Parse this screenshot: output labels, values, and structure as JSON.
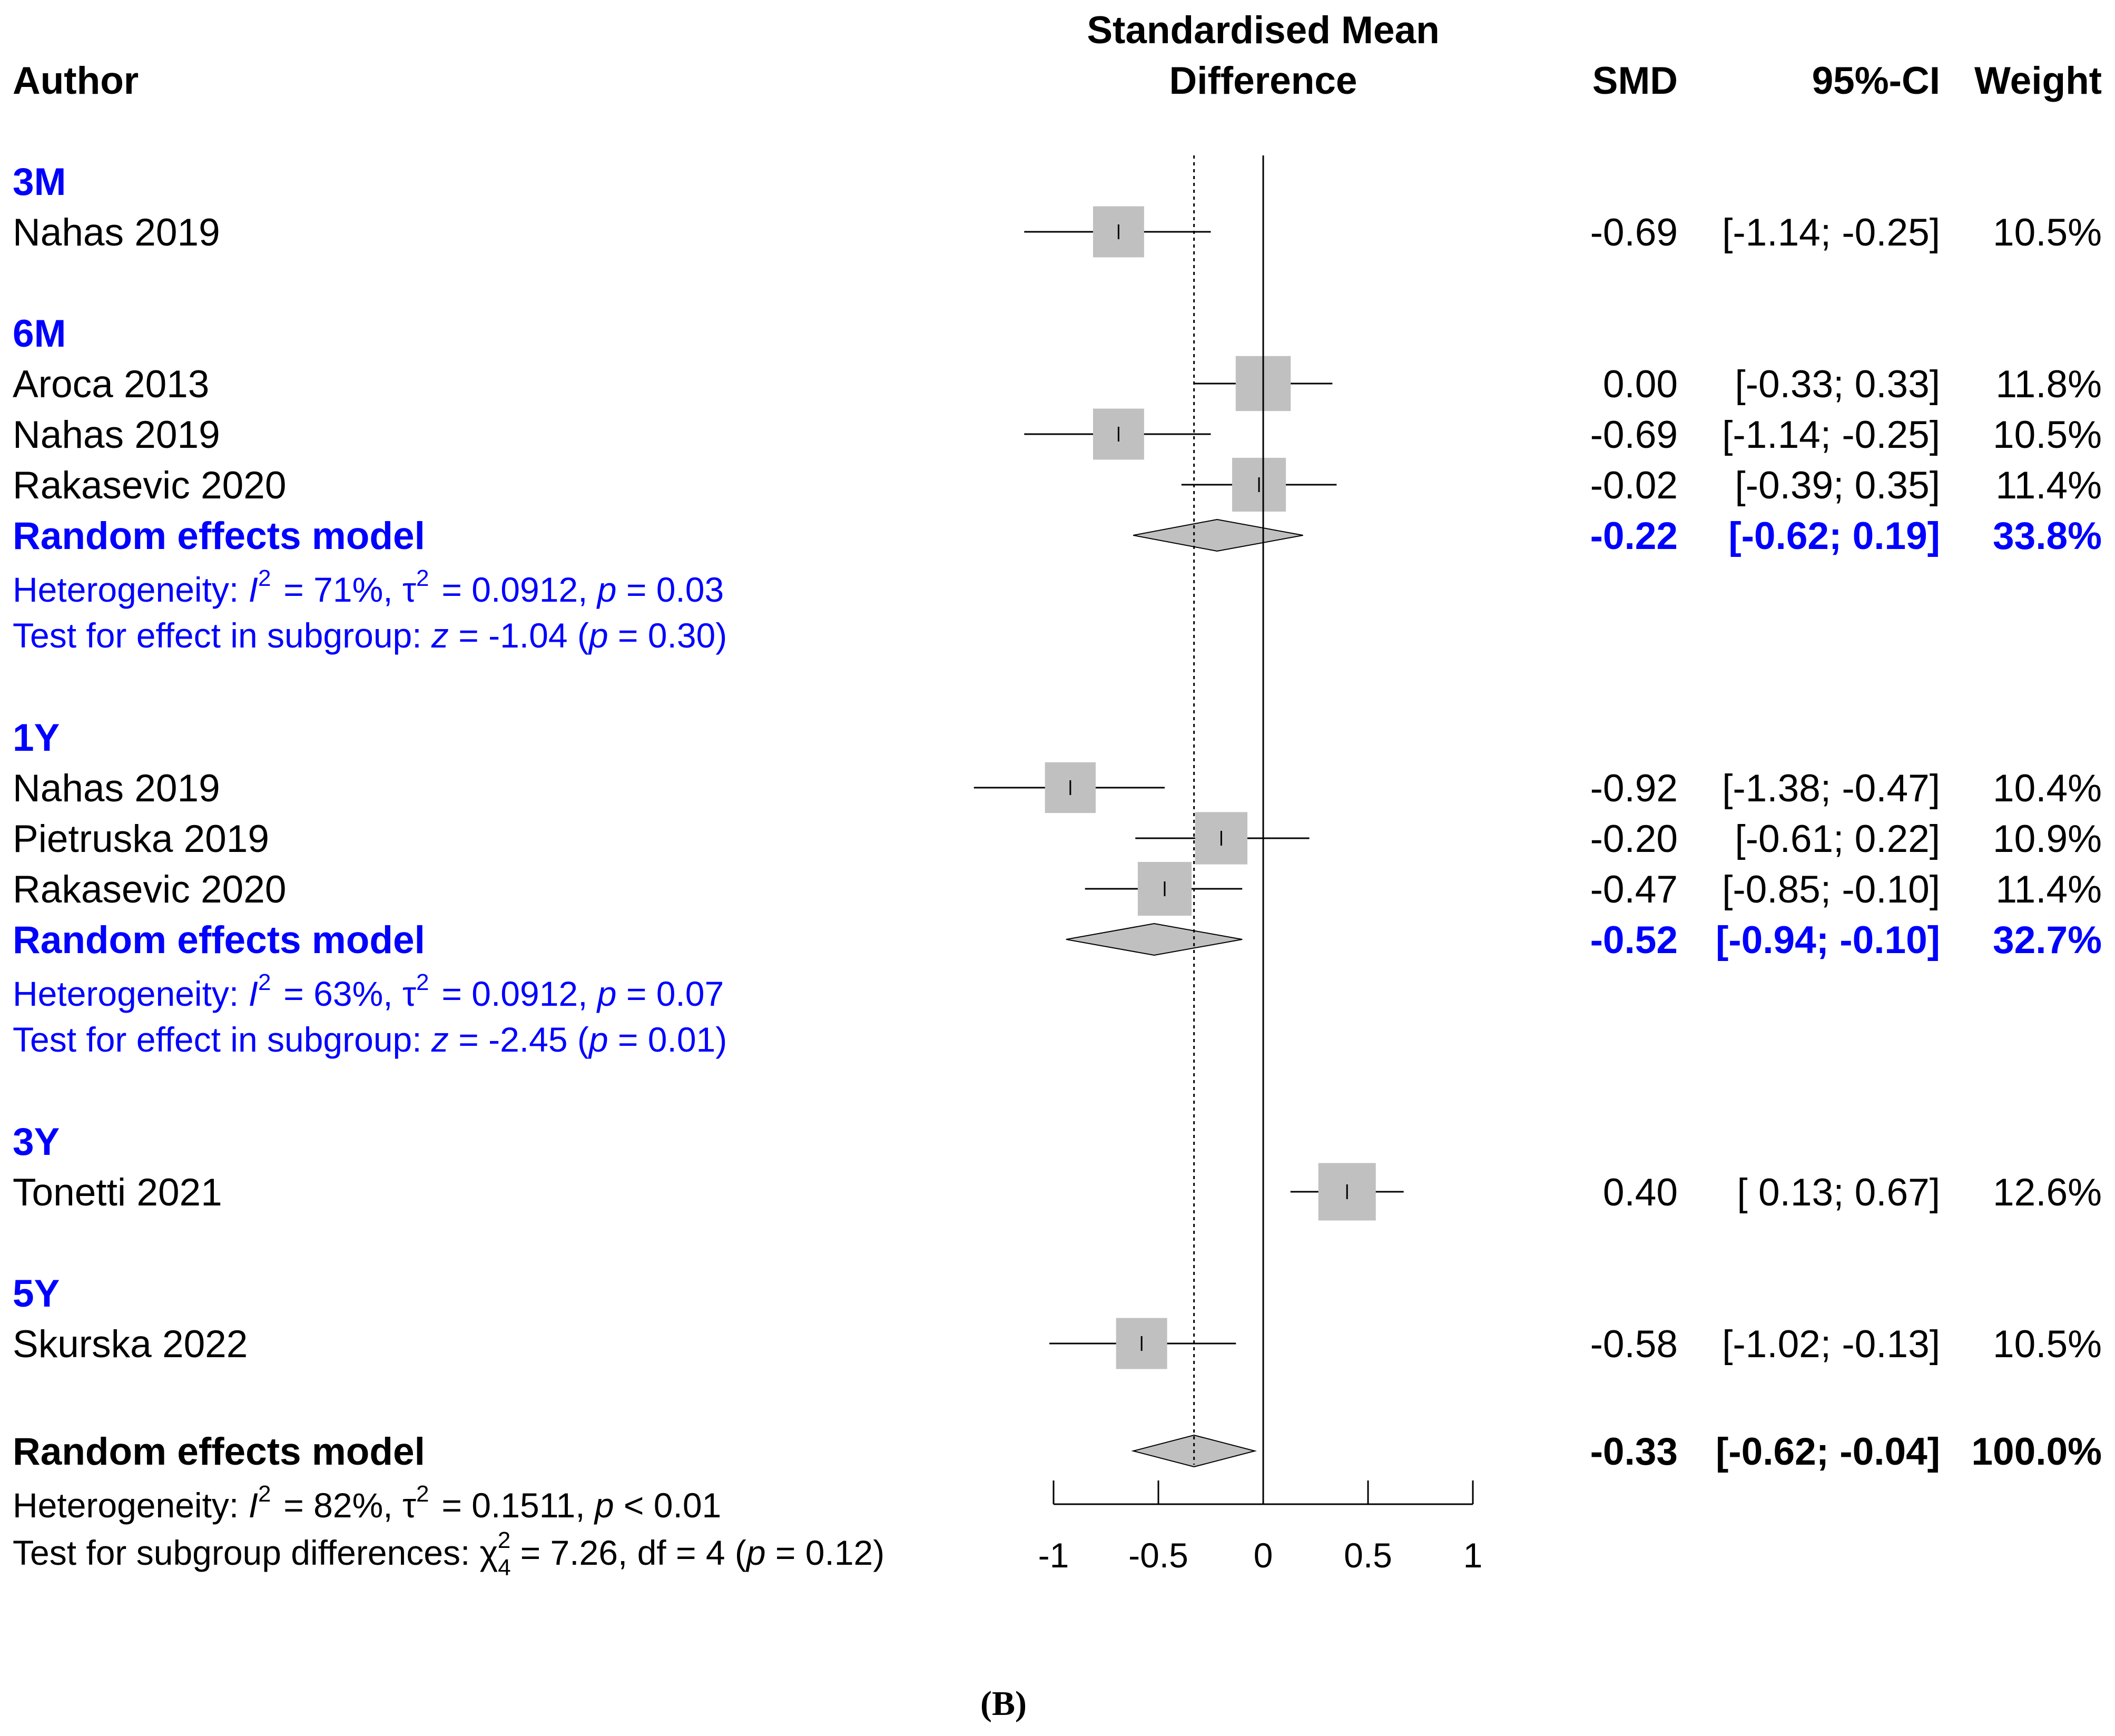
{
  "chart_data": {
    "type": "forest",
    "title": "Standardised Mean Difference",
    "headers": {
      "author": "Author",
      "effect_line1": "Standardised Mean",
      "effect_line2": "Difference",
      "smd": "SMD",
      "ci": "95%-CI",
      "weight": "Weight"
    },
    "xlim": [
      -1,
      1
    ],
    "ticks": [
      -1,
      -0.5,
      0,
      0.5,
      1
    ],
    "tick_labels": [
      "-1",
      "-0.5",
      "0",
      "0.5",
      "1"
    ],
    "overall_estimate": -0.33,
    "groups": [
      {
        "label": "3M",
        "studies": [
          {
            "author": "Nahas 2019",
            "smd": -0.69,
            "lo": -1.14,
            "hi": -0.25,
            "weight": 10.5,
            "smd_text": "-0.69",
            "ci_text": "[-1.14; -0.25]",
            "weight_text": "10.5%"
          }
        ]
      },
      {
        "label": "6M",
        "studies": [
          {
            "author": "Aroca 2013",
            "smd": 0.0,
            "lo": -0.33,
            "hi": 0.33,
            "weight": 11.8,
            "smd_text": "0.00",
            "ci_text": "[-0.33;  0.33]",
            "weight_text": "11.8%"
          },
          {
            "author": "Nahas 2019",
            "smd": -0.69,
            "lo": -1.14,
            "hi": -0.25,
            "weight": 10.5,
            "smd_text": "-0.69",
            "ci_text": "[-1.14; -0.25]",
            "weight_text": "10.5%"
          },
          {
            "author": "Rakasevic 2020",
            "smd": -0.02,
            "lo": -0.39,
            "hi": 0.35,
            "weight": 11.4,
            "smd_text": "-0.02",
            "ci_text": "[-0.39;  0.35]",
            "weight_text": "11.4%"
          }
        ],
        "summary": {
          "label": "Random effects model",
          "smd": -0.22,
          "lo": -0.62,
          "hi": 0.19,
          "smd_text": "-0.22",
          "ci_text": "[-0.62;  0.19]",
          "weight_text": "33.8%",
          "het_i2": "71%",
          "het_tau2": "0.0912",
          "het_p": "0.03",
          "test_z": "-1.04",
          "test_p": "0.30"
        }
      },
      {
        "label": "1Y",
        "studies": [
          {
            "author": "Nahas 2019",
            "smd": -0.92,
            "lo": -1.38,
            "hi": -0.47,
            "weight": 10.4,
            "smd_text": "-0.92",
            "ci_text": "[-1.38; -0.47]",
            "weight_text": "10.4%"
          },
          {
            "author": "Pietruska 2019",
            "smd": -0.2,
            "lo": -0.61,
            "hi": 0.22,
            "weight": 10.9,
            "smd_text": "-0.20",
            "ci_text": "[-0.61;  0.22]",
            "weight_text": "10.9%"
          },
          {
            "author": "Rakasevic 2020",
            "smd": -0.47,
            "lo": -0.85,
            "hi": -0.1,
            "weight": 11.4,
            "smd_text": "-0.47",
            "ci_text": "[-0.85; -0.10]",
            "weight_text": "11.4%"
          }
        ],
        "summary": {
          "label": "Random effects model",
          "smd": -0.52,
          "lo": -0.94,
          "hi": -0.1,
          "smd_text": "-0.52",
          "ci_text": "[-0.94; -0.10]",
          "weight_text": "32.7%",
          "het_i2": "63%",
          "het_tau2": "0.0912",
          "het_p": "0.07",
          "test_z": "-2.45",
          "test_p": "0.01"
        }
      },
      {
        "label": "3Y",
        "studies": [
          {
            "author": "Tonetti 2021",
            "smd": 0.4,
            "lo": 0.13,
            "hi": 0.67,
            "weight": 12.6,
            "smd_text": "0.40",
            "ci_text": "[ 0.13;  0.67]",
            "weight_text": "12.6%"
          }
        ]
      },
      {
        "label": "5Y",
        "studies": [
          {
            "author": "Skurska 2022",
            "smd": -0.58,
            "lo": -1.02,
            "hi": -0.13,
            "weight": 10.5,
            "smd_text": "-0.58",
            "ci_text": "[-1.02; -0.13]",
            "weight_text": "10.5%"
          }
        ]
      }
    ],
    "overall": {
      "label": "Random effects model",
      "smd": -0.33,
      "lo": -0.62,
      "hi": -0.04,
      "smd_text": "-0.33",
      "ci_text": "[-0.62; -0.04]",
      "weight_text": "100.0%",
      "het_i2": "82%",
      "het_tau2": "0.1511",
      "het_p": "< 0.01",
      "subgroup_chi2": "7.26",
      "subgroup_df": "4",
      "subgroup_k": "4",
      "subgroup_p": "0.12"
    },
    "caption": "(B)",
    "colors": {
      "subgroup": "#0000ff",
      "box": "#c0c0c0",
      "diamond": "#c0c0c0",
      "line": "#000000"
    }
  }
}
